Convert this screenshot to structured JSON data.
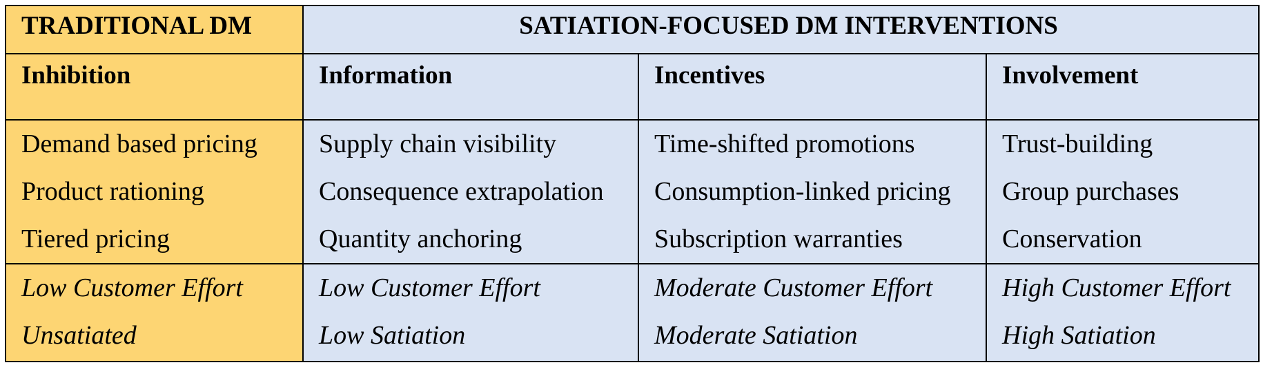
{
  "header": {
    "traditional": "TRADITIONAL DM",
    "satiation": "SATIATION-FOCUSED DM INTERVENTIONS"
  },
  "columns": [
    {
      "title": "Inhibition",
      "items": [
        "Demand based pricing",
        "Product rationing",
        "Tiered pricing"
      ],
      "effort": "Low Customer Effort",
      "satiation": "Unsatiated"
    },
    {
      "title": "Information",
      "items": [
        "Supply chain visibility",
        "Consequence extrapolation",
        "Quantity anchoring"
      ],
      "effort": "Low Customer Effort",
      "satiation": "Low Satiation"
    },
    {
      "title": "Incentives",
      "items": [
        "Time-shifted promotions",
        "Consumption-linked pricing",
        "Subscription warranties"
      ],
      "effort": "Moderate Customer Effort",
      "satiation": "Moderate Satiation"
    },
    {
      "title": "Involvement",
      "items": [
        "Trust-building",
        "Group purchases",
        "Conservation"
      ],
      "effort": "High Customer Effort",
      "satiation": "High Satiation"
    }
  ],
  "colors": {
    "traditional_bg": "#fdd573",
    "interventions_bg": "#d9e3f3",
    "border": "#000000"
  }
}
